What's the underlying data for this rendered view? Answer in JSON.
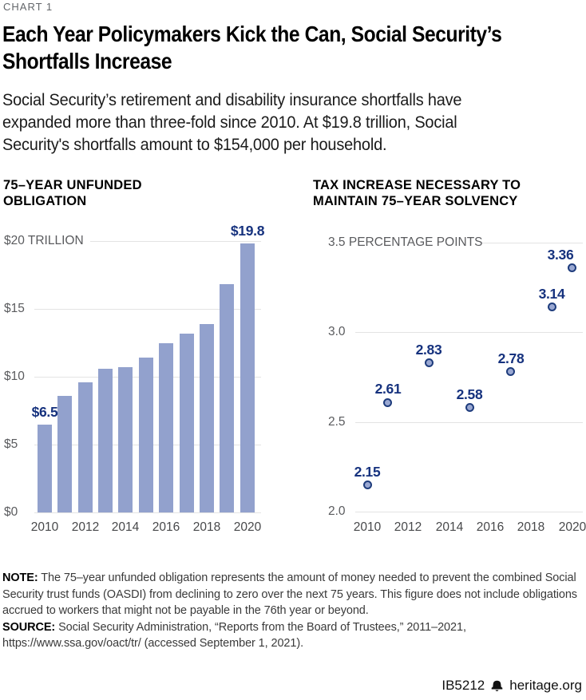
{
  "kicker": "CHART 1",
  "header": {
    "title_lines": [
      "Each Year Policymakers Kick the Can, Social Security’s",
      "Shortfalls Increase"
    ],
    "subtitle_lines": [
      "Social Security’s retirement and disability insurance shortfalls have",
      "expanded more than three-fold since 2010. At $19.8 trillion, Social",
      "Security's shortfalls amount to $154,000 per household."
    ]
  },
  "colors": {
    "bar": "#92a1cd",
    "dot_fill": "#9aa8d2",
    "dot_stroke": "#1e3c7c",
    "data_label": "#16327e",
    "gridline": "#e3e3e3",
    "axis_text": "#5a5b5e",
    "tick_text": "#47484a"
  },
  "chart_data": [
    {
      "type": "bar",
      "title": "75–YEAR UNFUNDED OBLIGATION",
      "title_lines": [
        "75–YEAR UNFUNDED",
        "OBLIGATION"
      ],
      "categories": [
        2010,
        2011,
        2012,
        2013,
        2014,
        2015,
        2016,
        2017,
        2018,
        2019,
        2020
      ],
      "values": [
        6.5,
        8.6,
        9.6,
        10.6,
        10.7,
        11.4,
        12.5,
        13.2,
        13.9,
        16.8,
        19.8
      ],
      "data_labels": [
        {
          "year": 2010,
          "label": "$6.5"
        },
        {
          "year": 2020,
          "label": "$19.8"
        }
      ],
      "ylim": [
        0,
        20
      ],
      "ytick_values": [
        0,
        5,
        10,
        15,
        20
      ],
      "ytick_labels": [
        "$0",
        "$5",
        "$10",
        "$15",
        "$20 TRILLION"
      ],
      "xticks": [
        2010,
        2012,
        2014,
        2016,
        2018,
        2020
      ],
      "ylabel": "$ TRILLION",
      "grid": true,
      "legend": "none"
    },
    {
      "type": "scatter",
      "title": "TAX INCREASE NECESSARY TO MAINTAIN 75–YEAR SOLVENCY",
      "title_lines": [
        "TAX INCREASE NECESSARY TO",
        "MAINTAIN 75–YEAR SOLVENCY"
      ],
      "x": [
        2010,
        2011,
        2013,
        2015,
        2017,
        2019,
        2020
      ],
      "y": [
        2.15,
        2.61,
        2.83,
        2.58,
        2.78,
        3.14,
        3.36
      ],
      "point_labels": [
        "2.15",
        "2.61",
        "2.83",
        "2.58",
        "2.78",
        "3.14",
        "3.36"
      ],
      "xlim": [
        2010,
        2020
      ],
      "ylim": [
        2.0,
        3.5
      ],
      "ytick_values": [
        2.0,
        2.5,
        3.0,
        3.5
      ],
      "ytick_labels": [
        "2.0",
        "2.5",
        "3.0",
        "3.5 PERCENTAGE POINTS"
      ],
      "xticks": [
        2010,
        2012,
        2014,
        2016,
        2018,
        2020
      ],
      "ylabel": "PERCENTAGE POINTS",
      "grid": true,
      "legend": "none"
    }
  ],
  "note": {
    "label": "NOTE:",
    "text": "The 75–year unfunded obligation represents the amount of money needed to prevent the combined Social Security trust funds (OASDI) from declining to zero over the next 75 years. This figure does not include obligations accrued to workers that might not be payable in the 76th year or beyond."
  },
  "source": {
    "label": "SOURCE:",
    "text": "Social Security Administration, “Reports from the Board of Trustees,” 2011–2021, https://www.ssa.gov/oact/tr/ (accessed September 1, 2021)."
  },
  "footer": {
    "doc_id": "IB5212",
    "site": "heritage.org"
  }
}
